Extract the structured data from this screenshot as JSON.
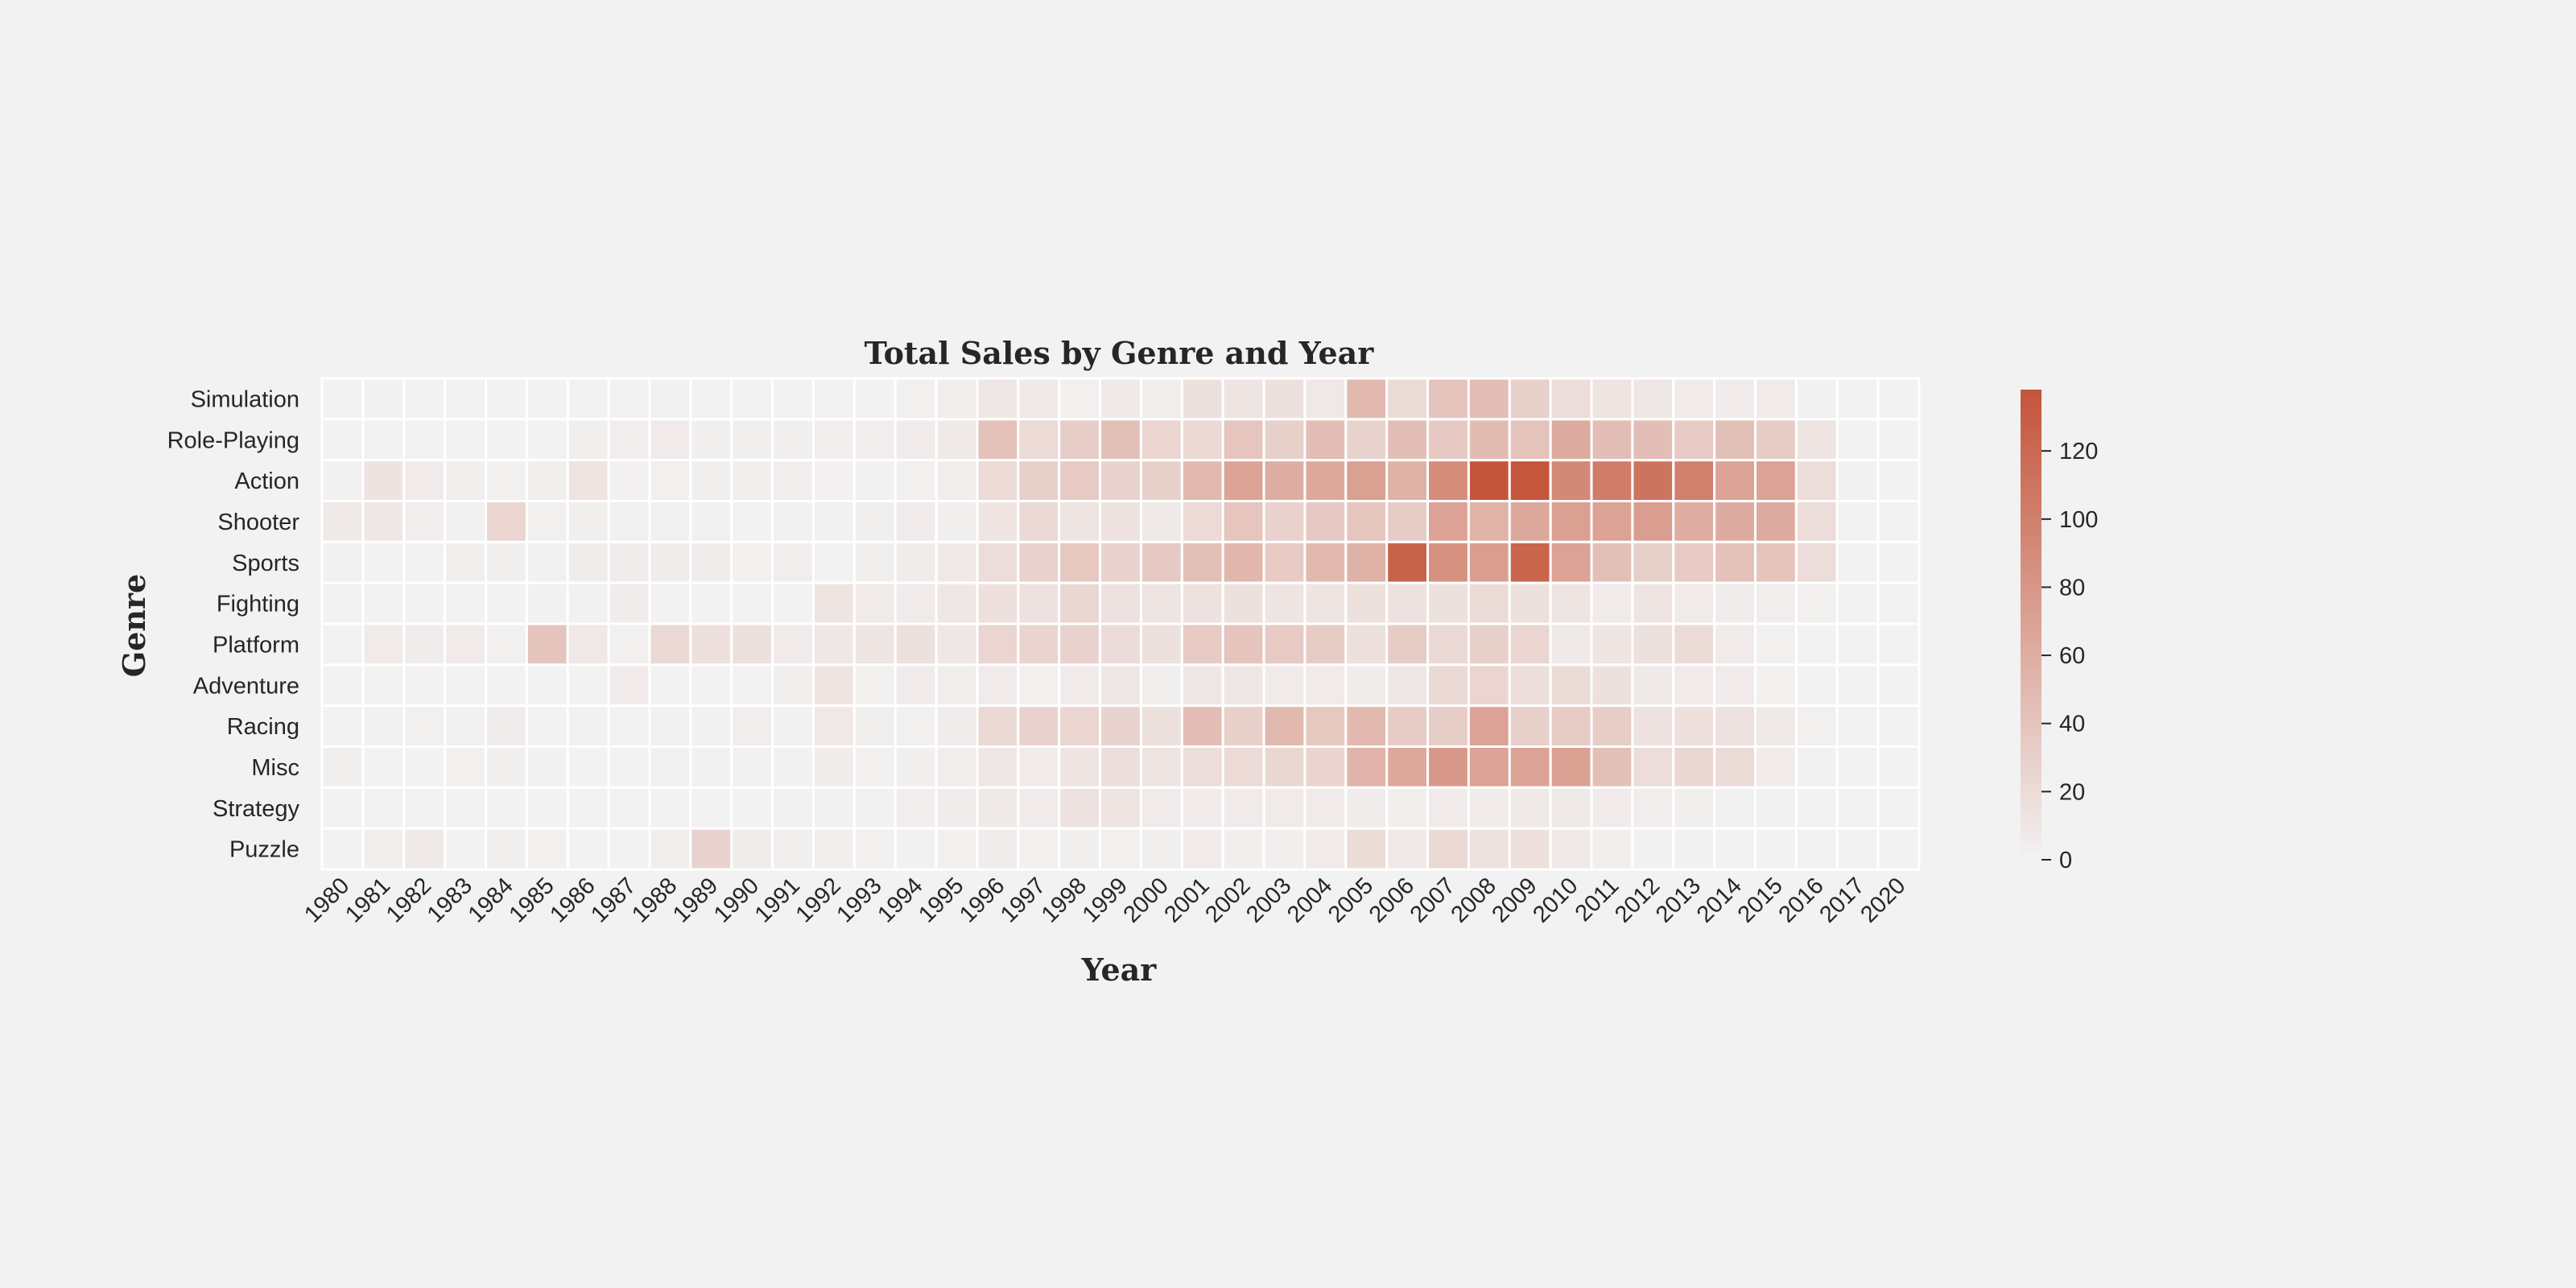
{
  "chart_data": {
    "type": "heatmap",
    "title": "Total Sales by Genre and Year",
    "xlabel": "Year",
    "ylabel": "Genre",
    "x": [
      "1980",
      "1981",
      "1982",
      "1983",
      "1984",
      "1985",
      "1986",
      "1987",
      "1988",
      "1989",
      "1990",
      "1991",
      "1992",
      "1993",
      "1994",
      "1995",
      "1996",
      "1997",
      "1998",
      "1999",
      "2000",
      "2001",
      "2002",
      "2003",
      "2004",
      "2005",
      "2006",
      "2007",
      "2008",
      "2009",
      "2010",
      "2011",
      "2012",
      "2013",
      "2014",
      "2015",
      "2016",
      "2017",
      "2020"
    ],
    "y": [
      "Simulation",
      "Role-Playing",
      "Action",
      "Shooter",
      "Sports",
      "Fighting",
      "Platform",
      "Adventure",
      "Racing",
      "Misc",
      "Strategy",
      "Puzzle"
    ],
    "values": [
      [
        0,
        0.5,
        0,
        0,
        0,
        0,
        0,
        0,
        0.5,
        0,
        0,
        0,
        0,
        0,
        2,
        4,
        10,
        8,
        2,
        8,
        4,
        15,
        12,
        15,
        9,
        50,
        20,
        40,
        45,
        30,
        18,
        12,
        10,
        6,
        6,
        6,
        1,
        0,
        0
      ],
      [
        0,
        0,
        0,
        0,
        0,
        0,
        3,
        4,
        6,
        3,
        3,
        3,
        4,
        4,
        6,
        8,
        42,
        21,
        32,
        44,
        25,
        22,
        39,
        30,
        45,
        27,
        45,
        36,
        48,
        41,
        62,
        45,
        45,
        35,
        44,
        34,
        12,
        0,
        0
      ],
      [
        1,
        13,
        6,
        3,
        2,
        3,
        12,
        1.5,
        2,
        3,
        3,
        4,
        1.5,
        1,
        2,
        4,
        21,
        30,
        35,
        28,
        30,
        50,
        69,
        60,
        64,
        72,
        56,
        89,
        137,
        136,
        92,
        103,
        110,
        100,
        68,
        70,
        18,
        1,
        0
      ],
      [
        8,
        10,
        4,
        1,
        25,
        2,
        3,
        0.5,
        1,
        1,
        0,
        1,
        1,
        3,
        6,
        3,
        11,
        22,
        12,
        14,
        8,
        21,
        39,
        28,
        36,
        38,
        33,
        70,
        55,
        65,
        72,
        70,
        73,
        60,
        62,
        62,
        18,
        0,
        0
      ],
      [
        1,
        0,
        0,
        3,
        3,
        1,
        5,
        5,
        5,
        5,
        2,
        4,
        0,
        3,
        5,
        8,
        18,
        28,
        37,
        27,
        36,
        44,
        52,
        35,
        50,
        56,
        125,
        85,
        73,
        124,
        70,
        44,
        30,
        35,
        43,
        40,
        18,
        0,
        0
      ],
      [
        0,
        0,
        0,
        0,
        0,
        1,
        1,
        5,
        0,
        0,
        0,
        0,
        12,
        7,
        6,
        10,
        16,
        14,
        24,
        14,
        12,
        14,
        15,
        11,
        11,
        15,
        14,
        15,
        20,
        15,
        11,
        6,
        11,
        6,
        5,
        4,
        2,
        0,
        0
      ],
      [
        0,
        7,
        5,
        6,
        2,
        40,
        9,
        2,
        22,
        16,
        15,
        6,
        10,
        12,
        15,
        10,
        25,
        26,
        28,
        19,
        15,
        35,
        40,
        35,
        34,
        16,
        34,
        22,
        30,
        25,
        8,
        12,
        15,
        20,
        6,
        2,
        0,
        0,
        0
      ],
      [
        0,
        0,
        0,
        0,
        0,
        0,
        0,
        6,
        0,
        0,
        0,
        3,
        12,
        2,
        6,
        4,
        6,
        2,
        6,
        10,
        3,
        10,
        10,
        6,
        7,
        5,
        10,
        22,
        25,
        17,
        20,
        15,
        8,
        6,
        6,
        2,
        0,
        0,
        0
      ],
      [
        0,
        1,
        2,
        1,
        5,
        0,
        1,
        0,
        1,
        1,
        4,
        1,
        9,
        3,
        2,
        5,
        22,
        28,
        25,
        27,
        15,
        46,
        30,
        50,
        37,
        50,
        33,
        32,
        70,
        30,
        34,
        32,
        14,
        16,
        14,
        8,
        2,
        0,
        0
      ],
      [
        3,
        0,
        0,
        2,
        3,
        1,
        0,
        0,
        1,
        1,
        1,
        1,
        5,
        2,
        3,
        4,
        10,
        6,
        12,
        17,
        12,
        18,
        21,
        24,
        26,
        54,
        65,
        79,
        70,
        69,
        71,
        44,
        18,
        24,
        20,
        6,
        1,
        0,
        0
      ],
      [
        0,
        0,
        0,
        0,
        0,
        0,
        0,
        0,
        0,
        0,
        0,
        0.5,
        0.5,
        0.5,
        4,
        5,
        8,
        6,
        14,
        12,
        6,
        6,
        6,
        7,
        6,
        5,
        3,
        6,
        6,
        8,
        8,
        6,
        4,
        3,
        1,
        1,
        0,
        0,
        0
      ],
      [
        0,
        3,
        8,
        0,
        3,
        2,
        0,
        0,
        4,
        27,
        5,
        3,
        4,
        2,
        1,
        2,
        5,
        2,
        3,
        2,
        3,
        6,
        3,
        3,
        7,
        20,
        8,
        22,
        14,
        16,
        8,
        3,
        1,
        1,
        0,
        0,
        0,
        0,
        0
      ]
    ],
    "vmin": 0,
    "vmax": 138,
    "colorbar_ticks": [
      0,
      20,
      40,
      60,
      80,
      100,
      120
    ],
    "colors": {
      "low": "#f2f2f2",
      "high": "#c4543a",
      "grid": "#ffffff"
    },
    "grid": false,
    "legend": "colorbar-right"
  }
}
